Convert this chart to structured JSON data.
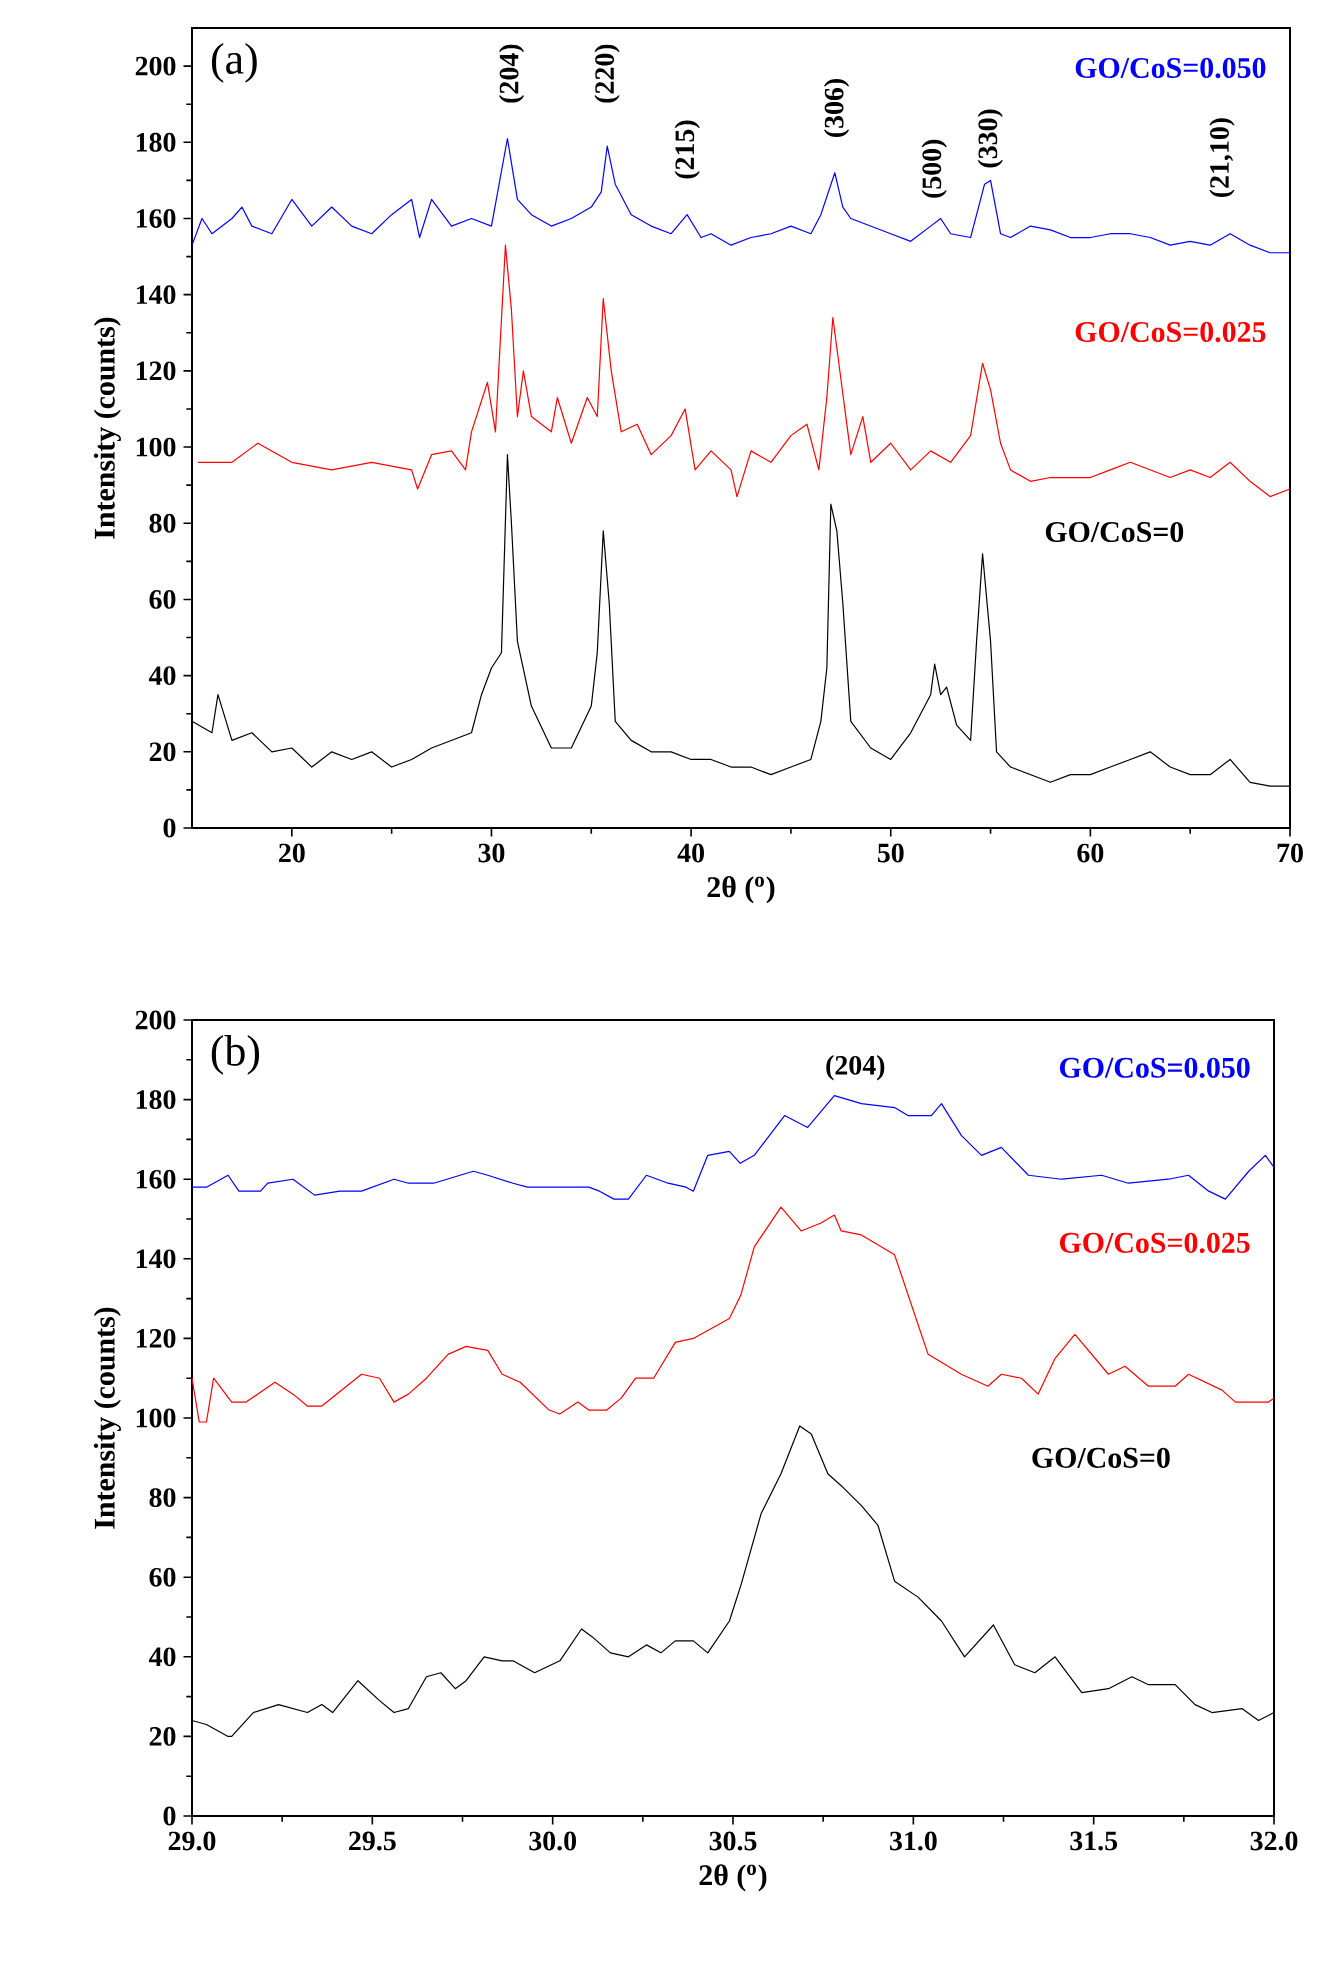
{
  "chart_data": [
    {
      "type": "line",
      "title": "(a)",
      "xlabel": "2θ  ($^{o}$)",
      "ylabel": "Intensity (counts)",
      "xlim": [
        15,
        70
      ],
      "ylim": [
        0,
        210
      ],
      "xticks": [
        20,
        30,
        40,
        50,
        60,
        70
      ],
      "yticks": [
        0,
        20,
        40,
        60,
        80,
        100,
        120,
        140,
        160,
        180,
        200
      ],
      "annotations": [
        "(204)",
        "(220)",
        "(215)",
        "(306)",
        "(500)",
        "(330)",
        "(21,10)"
      ],
      "series": [
        {
          "name": "GO/CoS=0.050",
          "color": "#0000ff",
          "x": [
            15,
            15.5,
            16,
            17,
            17.5,
            18,
            19,
            20,
            21,
            22,
            23,
            24,
            25,
            26,
            26.4,
            27,
            28,
            29,
            30,
            30.8,
            31.3,
            32,
            33,
            34,
            35,
            35.5,
            35.8,
            36.2,
            37,
            38,
            39,
            39.8,
            40.5,
            41,
            42,
            43,
            44,
            45,
            46,
            46.5,
            47.2,
            47.6,
            48,
            49,
            50,
            51,
            52,
            52.5,
            53,
            54,
            54.7,
            55,
            55.5,
            56,
            57,
            58,
            59,
            60,
            61,
            62,
            63,
            64,
            65,
            66,
            67,
            68,
            69,
            70
          ],
          "values": [
            153,
            160,
            156,
            160,
            163,
            158,
            156,
            165,
            158,
            163,
            158,
            156,
            161,
            165,
            155,
            165,
            158,
            160,
            158,
            181,
            165,
            161,
            158,
            160,
            163,
            167,
            179,
            169,
            161,
            158,
            156,
            161,
            155,
            156,
            153,
            155,
            156,
            158,
            156,
            161,
            172,
            163,
            160,
            158,
            156,
            154,
            158,
            160,
            156,
            155,
            169,
            170,
            156,
            155,
            158,
            157,
            155,
            155,
            156,
            156,
            155,
            153,
            154,
            153,
            156,
            153,
            151,
            151
          ]
        },
        {
          "name": "GO/CoS=0.025",
          "color": "#ff0000",
          "x": [
            15.3,
            17,
            18.3,
            20,
            22,
            24,
            26,
            26.3,
            27,
            28,
            28.7,
            29,
            29.8,
            30.2,
            30.7,
            31,
            31.3,
            31.6,
            32,
            33,
            33.3,
            34,
            34.8,
            35.3,
            35.6,
            36,
            36.5,
            37.3,
            38,
            39,
            39.7,
            40.2,
            41,
            42,
            42.3,
            43,
            44,
            45,
            45.8,
            46.4,
            46.8,
            47.1,
            47.5,
            48,
            48.6,
            49,
            50,
            51,
            52,
            53,
            54,
            54.6,
            55,
            55.5,
            56,
            57,
            58,
            59,
            60,
            61,
            62,
            63,
            64,
            65,
            66,
            67,
            68,
            69,
            70
          ],
          "values": [
            96,
            96,
            101,
            96,
            94,
            96,
            94,
            89,
            98,
            99,
            94,
            104,
            117,
            104,
            153,
            136,
            108,
            120,
            108,
            104,
            113,
            101,
            113,
            108,
            139,
            120,
            104,
            106,
            98,
            103,
            110,
            94,
            99,
            94,
            87,
            99,
            96,
            103,
            106,
            94,
            113,
            134,
            118,
            98,
            108,
            96,
            101,
            94,
            99,
            96,
            103,
            122,
            115,
            101,
            94,
            91,
            92,
            92,
            92,
            94,
            96,
            94,
            92,
            94,
            92,
            96,
            91,
            87,
            89
          ]
        },
        {
          "name": "GO/CoS=0",
          "color": "#000000",
          "x": [
            15,
            16,
            16.3,
            17,
            18,
            19,
            20,
            21,
            22,
            23,
            24,
            25,
            26,
            27,
            28,
            29,
            29.5,
            30,
            30.5,
            30.8,
            31,
            31.3,
            32,
            33,
            34,
            35,
            35.3,
            35.6,
            35.9,
            36.2,
            37,
            38,
            39,
            40,
            41,
            42,
            43,
            44,
            45,
            46,
            46.5,
            46.8,
            47,
            47.3,
            47.6,
            48,
            49,
            50,
            51,
            52,
            52.2,
            52.5,
            52.8,
            53.3,
            54,
            54.3,
            54.6,
            55,
            55.3,
            56,
            57,
            58,
            59,
            60,
            61,
            62,
            63,
            64,
            65,
            66,
            67,
            68,
            69,
            70
          ],
          "values": [
            28,
            25,
            35,
            23,
            25,
            20,
            21,
            16,
            20,
            18,
            20,
            16,
            18,
            21,
            23,
            25,
            35,
            42,
            46,
            98,
            80,
            49,
            32,
            21,
            21,
            32,
            46,
            78,
            59,
            28,
            23,
            20,
            20,
            18,
            18,
            16,
            16,
            14,
            16,
            18,
            28,
            42,
            85,
            78,
            59,
            28,
            21,
            18,
            25,
            35,
            43,
            35,
            37,
            27,
            23,
            49,
            72,
            49,
            20,
            16,
            14,
            12,
            14,
            14,
            16,
            18,
            20,
            16,
            14,
            14,
            18,
            12,
            11,
            11
          ]
        }
      ]
    },
    {
      "type": "line",
      "title": "(b)",
      "xlabel": "2θ  ($^{o}$)",
      "ylabel": "Intensity (counts)",
      "xlim": [
        29,
        32
      ],
      "ylim": [
        0,
        200
      ],
      "xticks": [
        {
          "value": 29,
          "label": "29.0"
        },
        {
          "value": 29.5,
          "label": "29.5"
        },
        {
          "value": 30,
          "label": "30.0"
        },
        {
          "value": 30.5,
          "label": "30.5"
        },
        {
          "value": 31,
          "label": "31.0"
        },
        {
          "value": 31.5,
          "label": "31.5"
        },
        {
          "value": 32,
          "label": "32.0"
        }
      ],
      "yticks": [
        0,
        20,
        40,
        60,
        80,
        100,
        120,
        140,
        160,
        180,
        200
      ],
      "annotations": [
        "(204)"
      ],
      "series": [
        {
          "name": "GO/CoS=0.050",
          "color": "#0000ff",
          "x": [
            29.0,
            29.04,
            29.1,
            29.13,
            29.19,
            29.21,
            29.28,
            29.34,
            29.41,
            29.47,
            29.56,
            29.6,
            29.67,
            29.78,
            29.82,
            29.89,
            29.93,
            30.1,
            30.13,
            30.17,
            30.21,
            30.26,
            30.32,
            30.37,
            30.39,
            30.43,
            30.49,
            30.52,
            30.559,
            30.643,
            30.707,
            30.781,
            30.856,
            30.948,
            30.985,
            31.05,
            31.078,
            31.133,
            31.189,
            31.244,
            31.319,
            31.411,
            31.522,
            31.596,
            31.707,
            31.763,
            31.819,
            31.865,
            31.93,
            31.976,
            32.0
          ],
          "values": [
            158,
            158,
            161,
            157,
            157,
            159,
            160,
            156,
            157,
            157,
            160,
            159,
            159,
            162,
            161,
            159,
            158,
            158,
            157,
            155,
            155,
            161,
            159,
            158,
            157,
            166,
            167,
            164,
            166,
            176,
            173,
            181,
            179,
            178,
            176,
            176,
            179,
            171,
            166,
            168,
            161,
            160,
            161,
            159,
            160,
            161,
            157,
            155,
            162,
            166,
            163
          ]
        },
        {
          "name": "GO/CoS=0.025",
          "color": "#ff0000",
          "x": [
            29.0,
            29.02,
            29.04,
            29.06,
            29.11,
            29.15,
            29.23,
            29.28,
            29.32,
            29.36,
            29.47,
            29.52,
            29.56,
            29.6,
            29.65,
            29.71,
            29.76,
            29.82,
            29.86,
            29.91,
            29.99,
            30.02,
            30.07,
            30.1,
            30.15,
            30.19,
            30.23,
            30.28,
            30.34,
            30.39,
            30.45,
            30.49,
            30.522,
            30.559,
            30.633,
            30.689,
            30.744,
            30.781,
            30.8,
            30.856,
            30.948,
            31.041,
            31.133,
            31.207,
            31.244,
            31.3,
            31.346,
            31.393,
            31.448,
            31.541,
            31.587,
            31.652,
            31.726,
            31.763,
            31.856,
            31.893,
            31.985,
            32.0
          ],
          "values": [
            110,
            99,
            99,
            110,
            104,
            104,
            109,
            106,
            103,
            103,
            111,
            110,
            104,
            106,
            110,
            116,
            118,
            117,
            111,
            109,
            102,
            101,
            104,
            102,
            102,
            105,
            110,
            110,
            119,
            120,
            123,
            125,
            131,
            143,
            153,
            147,
            149,
            151,
            147,
            146,
            141,
            116,
            111,
            108,
            111,
            110,
            106,
            115,
            121,
            111,
            113,
            108,
            108,
            111,
            107,
            104,
            104,
            105
          ]
        },
        {
          "name": "GO/CoS=0",
          "color": "#000000",
          "x": [
            29.0,
            29.04,
            29.1,
            29.11,
            29.17,
            29.24,
            29.32,
            29.36,
            29.39,
            29.46,
            29.52,
            29.56,
            29.6,
            29.65,
            29.69,
            29.73,
            29.76,
            29.81,
            29.86,
            29.89,
            29.95,
            30.02,
            30.08,
            30.11,
            30.16,
            30.21,
            30.26,
            30.3,
            30.34,
            30.39,
            30.43,
            30.49,
            30.522,
            30.578,
            30.633,
            30.685,
            30.717,
            30.763,
            30.8,
            30.856,
            30.902,
            30.948,
            31.013,
            31.078,
            31.142,
            31.222,
            31.281,
            31.337,
            31.393,
            31.467,
            31.541,
            31.606,
            31.652,
            31.726,
            31.781,
            31.828,
            31.911,
            31.957,
            32.0
          ],
          "values": [
            24,
            23,
            20,
            20,
            26,
            28,
            26,
            28,
            26,
            34,
            29,
            26,
            27,
            35,
            36,
            32,
            34,
            40,
            39,
            39,
            36,
            39,
            47,
            45,
            41,
            40,
            43,
            41,
            44,
            44,
            41,
            49,
            58,
            76,
            86,
            98,
            96,
            86,
            83,
            78,
            73,
            59,
            55,
            49,
            40,
            48,
            38,
            36,
            40,
            31,
            32,
            35,
            33,
            33,
            28,
            26,
            27,
            24,
            26
          ]
        }
      ]
    }
  ]
}
